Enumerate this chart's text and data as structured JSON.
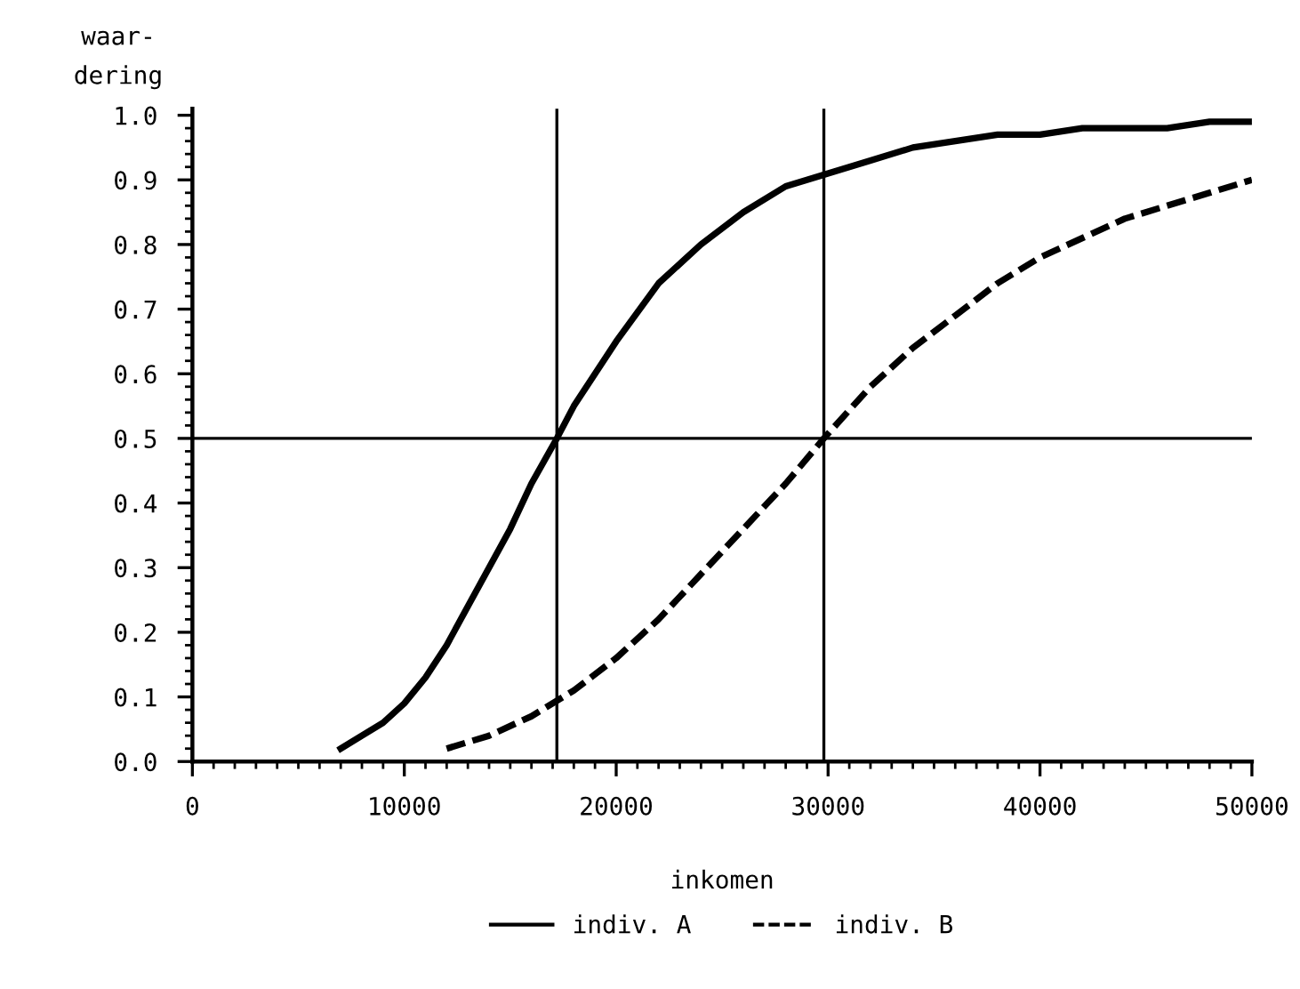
{
  "chart_data": {
    "type": "line",
    "xlabel": "inkomen",
    "ylabel": "waar-\ndering",
    "xlim": [
      0,
      50000
    ],
    "xticks": [
      0,
      10000,
      20000,
      30000,
      40000,
      50000
    ],
    "ylim": [
      0,
      1.01
    ],
    "yticks": [
      {
        "value": 0,
        "label": "0.0"
      },
      0.1,
      0.2,
      0.3,
      0.4,
      0.5,
      0.6,
      0.7,
      0.8,
      0.9,
      {
        "value": 1,
        "label": "1.0"
      }
    ],
    "grid": false,
    "legend": "bottom",
    "marker": "none",
    "series": [
      {
        "name": "indiv. A",
        "color": "#000000",
        "line_style": "solid",
        "x": [
          7000,
          8000,
          9000,
          10000,
          11000,
          12000,
          13000,
          14000,
          15000,
          16000,
          17200,
          18000,
          19000,
          20000,
          22000,
          24000,
          26000,
          28000,
          30000,
          32000,
          34000,
          36000,
          38000,
          40000,
          42000,
          44000,
          46000,
          48000,
          50000
        ],
        "values": [
          0.02,
          0.04,
          0.06,
          0.09,
          0.13,
          0.18,
          0.24,
          0.3,
          0.36,
          0.43,
          0.5,
          0.55,
          0.6,
          0.65,
          0.74,
          0.8,
          0.85,
          0.89,
          0.91,
          0.93,
          0.95,
          0.96,
          0.97,
          0.97,
          0.98,
          0.98,
          0.98,
          0.99,
          0.99
        ]
      },
      {
        "name": "indiv. B",
        "color": "#000000",
        "line_style": "dashed",
        "x": [
          12000,
          14000,
          16000,
          18000,
          20000,
          22000,
          24000,
          26000,
          28000,
          29800,
          32000,
          34000,
          36000,
          38000,
          40000,
          42000,
          44000,
          46000,
          48000,
          50000
        ],
        "values": [
          0.02,
          0.04,
          0.07,
          0.11,
          0.16,
          0.22,
          0.29,
          0.36,
          0.43,
          0.5,
          0.58,
          0.64,
          0.69,
          0.74,
          0.78,
          0.81,
          0.84,
          0.86,
          0.88,
          0.9
        ]
      }
    ],
    "ref_lines": [
      {
        "axis": "x",
        "value": 17200,
        "color": "#000000"
      },
      {
        "axis": "x",
        "value": 29800,
        "color": "#000000"
      },
      {
        "axis": "y",
        "value": 0.5,
        "color": "#000000"
      }
    ]
  }
}
